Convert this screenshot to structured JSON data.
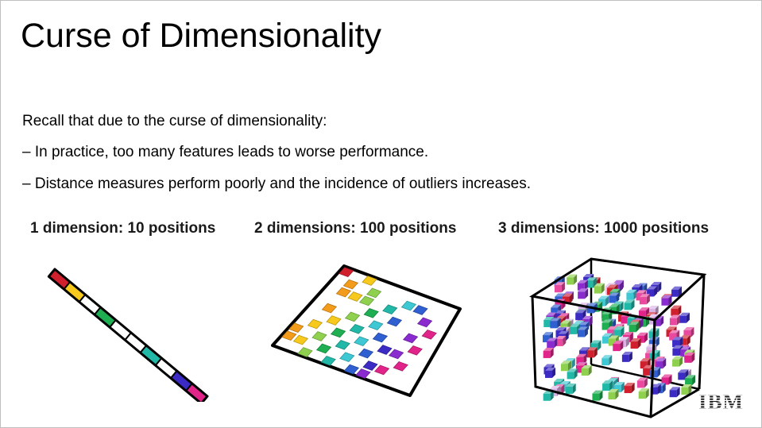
{
  "slide": {
    "title": "Curse of Dimensionality",
    "lines": [
      "Recall that due to the curse of dimensionality:",
      "– In practice, too many features leads to worse performance.",
      "– Distance measures perform poorly and the incidence of outliers increases."
    ],
    "captions": [
      "1 dimension: 10 positions",
      "2 dimensions: 100 positions",
      "3 dimensions: 1000 positions"
    ],
    "logo_text": "IBM"
  },
  "colors": {
    "red": "#d0202e",
    "orange": "#f39b1a",
    "yellow": "#f7c91c",
    "light_green": "#8fd14f",
    "green": "#1fae52",
    "teal": "#22b8a8",
    "cyan": "#3ec8d3",
    "blue": "#2f5fd0",
    "indigo": "#3b2bc4",
    "violet": "#8a2bd0",
    "magenta": "#e0248a",
    "pink": "#e94aa0",
    "lilac": "#d9b3e6"
  }
}
